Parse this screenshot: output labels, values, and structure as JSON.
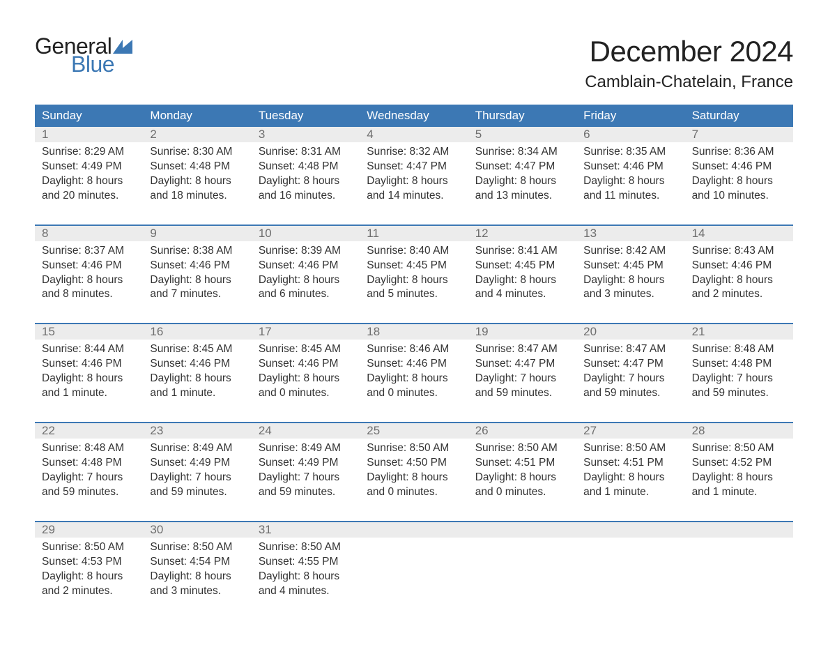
{
  "brand": {
    "line1": "General",
    "line2": "Blue",
    "flag_color": "#3c78b4",
    "text_color_dark": "#222222",
    "text_color_blue": "#3c78b4"
  },
  "title": "December 2024",
  "location": "Camblain-Chatelain, France",
  "colors": {
    "header_bg": "#3c78b4",
    "header_text": "#ffffff",
    "daynum_bg": "#ececec",
    "daynum_text": "#6e6e6e",
    "body_text": "#333333",
    "rule": "#3c78b4",
    "page_bg": "#ffffff"
  },
  "typography": {
    "title_fontsize": 42,
    "location_fontsize": 24,
    "dow_fontsize": 17,
    "cell_fontsize": 15.5,
    "font_family": "Arial"
  },
  "days_of_week": [
    "Sunday",
    "Monday",
    "Tuesday",
    "Wednesday",
    "Thursday",
    "Friday",
    "Saturday"
  ],
  "weeks": [
    [
      {
        "n": "1",
        "sunrise": "Sunrise: 8:29 AM",
        "sunset": "Sunset: 4:49 PM",
        "d1": "Daylight: 8 hours",
        "d2": "and 20 minutes."
      },
      {
        "n": "2",
        "sunrise": "Sunrise: 8:30 AM",
        "sunset": "Sunset: 4:48 PM",
        "d1": "Daylight: 8 hours",
        "d2": "and 18 minutes."
      },
      {
        "n": "3",
        "sunrise": "Sunrise: 8:31 AM",
        "sunset": "Sunset: 4:48 PM",
        "d1": "Daylight: 8 hours",
        "d2": "and 16 minutes."
      },
      {
        "n": "4",
        "sunrise": "Sunrise: 8:32 AM",
        "sunset": "Sunset: 4:47 PM",
        "d1": "Daylight: 8 hours",
        "d2": "and 14 minutes."
      },
      {
        "n": "5",
        "sunrise": "Sunrise: 8:34 AM",
        "sunset": "Sunset: 4:47 PM",
        "d1": "Daylight: 8 hours",
        "d2": "and 13 minutes."
      },
      {
        "n": "6",
        "sunrise": "Sunrise: 8:35 AM",
        "sunset": "Sunset: 4:46 PM",
        "d1": "Daylight: 8 hours",
        "d2": "and 11 minutes."
      },
      {
        "n": "7",
        "sunrise": "Sunrise: 8:36 AM",
        "sunset": "Sunset: 4:46 PM",
        "d1": "Daylight: 8 hours",
        "d2": "and 10 minutes."
      }
    ],
    [
      {
        "n": "8",
        "sunrise": "Sunrise: 8:37 AM",
        "sunset": "Sunset: 4:46 PM",
        "d1": "Daylight: 8 hours",
        "d2": "and 8 minutes."
      },
      {
        "n": "9",
        "sunrise": "Sunrise: 8:38 AM",
        "sunset": "Sunset: 4:46 PM",
        "d1": "Daylight: 8 hours",
        "d2": "and 7 minutes."
      },
      {
        "n": "10",
        "sunrise": "Sunrise: 8:39 AM",
        "sunset": "Sunset: 4:46 PM",
        "d1": "Daylight: 8 hours",
        "d2": "and 6 minutes."
      },
      {
        "n": "11",
        "sunrise": "Sunrise: 8:40 AM",
        "sunset": "Sunset: 4:45 PM",
        "d1": "Daylight: 8 hours",
        "d2": "and 5 minutes."
      },
      {
        "n": "12",
        "sunrise": "Sunrise: 8:41 AM",
        "sunset": "Sunset: 4:45 PM",
        "d1": "Daylight: 8 hours",
        "d2": "and 4 minutes."
      },
      {
        "n": "13",
        "sunrise": "Sunrise: 8:42 AM",
        "sunset": "Sunset: 4:45 PM",
        "d1": "Daylight: 8 hours",
        "d2": "and 3 minutes."
      },
      {
        "n": "14",
        "sunrise": "Sunrise: 8:43 AM",
        "sunset": "Sunset: 4:46 PM",
        "d1": "Daylight: 8 hours",
        "d2": "and 2 minutes."
      }
    ],
    [
      {
        "n": "15",
        "sunrise": "Sunrise: 8:44 AM",
        "sunset": "Sunset: 4:46 PM",
        "d1": "Daylight: 8 hours",
        "d2": "and 1 minute."
      },
      {
        "n": "16",
        "sunrise": "Sunrise: 8:45 AM",
        "sunset": "Sunset: 4:46 PM",
        "d1": "Daylight: 8 hours",
        "d2": "and 1 minute."
      },
      {
        "n": "17",
        "sunrise": "Sunrise: 8:45 AM",
        "sunset": "Sunset: 4:46 PM",
        "d1": "Daylight: 8 hours",
        "d2": "and 0 minutes."
      },
      {
        "n": "18",
        "sunrise": "Sunrise: 8:46 AM",
        "sunset": "Sunset: 4:46 PM",
        "d1": "Daylight: 8 hours",
        "d2": "and 0 minutes."
      },
      {
        "n": "19",
        "sunrise": "Sunrise: 8:47 AM",
        "sunset": "Sunset: 4:47 PM",
        "d1": "Daylight: 7 hours",
        "d2": "and 59 minutes."
      },
      {
        "n": "20",
        "sunrise": "Sunrise: 8:47 AM",
        "sunset": "Sunset: 4:47 PM",
        "d1": "Daylight: 7 hours",
        "d2": "and 59 minutes."
      },
      {
        "n": "21",
        "sunrise": "Sunrise: 8:48 AM",
        "sunset": "Sunset: 4:48 PM",
        "d1": "Daylight: 7 hours",
        "d2": "and 59 minutes."
      }
    ],
    [
      {
        "n": "22",
        "sunrise": "Sunrise: 8:48 AM",
        "sunset": "Sunset: 4:48 PM",
        "d1": "Daylight: 7 hours",
        "d2": "and 59 minutes."
      },
      {
        "n": "23",
        "sunrise": "Sunrise: 8:49 AM",
        "sunset": "Sunset: 4:49 PM",
        "d1": "Daylight: 7 hours",
        "d2": "and 59 minutes."
      },
      {
        "n": "24",
        "sunrise": "Sunrise: 8:49 AM",
        "sunset": "Sunset: 4:49 PM",
        "d1": "Daylight: 7 hours",
        "d2": "and 59 minutes."
      },
      {
        "n": "25",
        "sunrise": "Sunrise: 8:50 AM",
        "sunset": "Sunset: 4:50 PM",
        "d1": "Daylight: 8 hours",
        "d2": "and 0 minutes."
      },
      {
        "n": "26",
        "sunrise": "Sunrise: 8:50 AM",
        "sunset": "Sunset: 4:51 PM",
        "d1": "Daylight: 8 hours",
        "d2": "and 0 minutes."
      },
      {
        "n": "27",
        "sunrise": "Sunrise: 8:50 AM",
        "sunset": "Sunset: 4:51 PM",
        "d1": "Daylight: 8 hours",
        "d2": "and 1 minute."
      },
      {
        "n": "28",
        "sunrise": "Sunrise: 8:50 AM",
        "sunset": "Sunset: 4:52 PM",
        "d1": "Daylight: 8 hours",
        "d2": "and 1 minute."
      }
    ],
    [
      {
        "n": "29",
        "sunrise": "Sunrise: 8:50 AM",
        "sunset": "Sunset: 4:53 PM",
        "d1": "Daylight: 8 hours",
        "d2": "and 2 minutes."
      },
      {
        "n": "30",
        "sunrise": "Sunrise: 8:50 AM",
        "sunset": "Sunset: 4:54 PM",
        "d1": "Daylight: 8 hours",
        "d2": "and 3 minutes."
      },
      {
        "n": "31",
        "sunrise": "Sunrise: 8:50 AM",
        "sunset": "Sunset: 4:55 PM",
        "d1": "Daylight: 8 hours",
        "d2": "and 4 minutes."
      },
      {
        "n": "",
        "sunrise": "",
        "sunset": "",
        "d1": "",
        "d2": ""
      },
      {
        "n": "",
        "sunrise": "",
        "sunset": "",
        "d1": "",
        "d2": ""
      },
      {
        "n": "",
        "sunrise": "",
        "sunset": "",
        "d1": "",
        "d2": ""
      },
      {
        "n": "",
        "sunrise": "",
        "sunset": "",
        "d1": "",
        "d2": ""
      }
    ]
  ]
}
